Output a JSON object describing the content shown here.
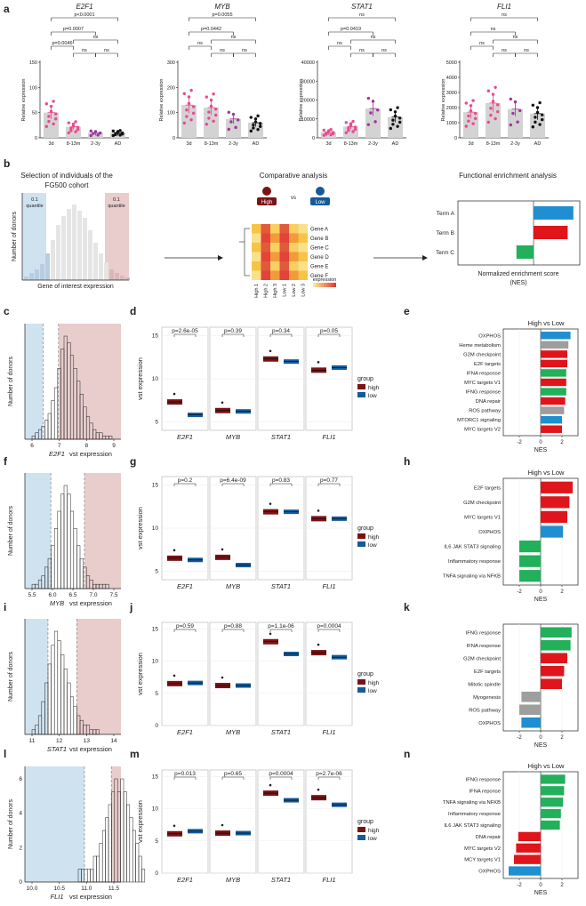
{
  "panel_letters": [
    "a",
    "b",
    "c",
    "d",
    "e",
    "f",
    "g",
    "h",
    "i",
    "j",
    "k",
    "l",
    "m",
    "n"
  ],
  "colors": {
    "pink_dots": "#e84a8f",
    "purple_dots": "#a0359a",
    "black_dots": "#111111",
    "bar_gray": "#d3d3d3",
    "low_shade": "#cfe2ef",
    "high_shade": "#e9cccc",
    "high_box": "#7b1315",
    "low_box": "#155a9a",
    "nes_green": "#22b05a",
    "nes_red": "#e0151b",
    "nes_blue": "#1f8fd1",
    "nes_gray": "#9e9e9e"
  },
  "panel_a": {
    "ylabel": "Relative expression",
    "categories": [
      "3d",
      "8-13m",
      "2-3y",
      "AD"
    ],
    "plots": [
      {
        "gene": "E2F1",
        "yticks": [
          "0",
          "50",
          "100",
          "150"
        ],
        "ymax": 150,
        "means": [
          50,
          22,
          10,
          10
        ],
        "brackets": [
          {
            "from": 0,
            "to": 3,
            "label": "p<0.0001"
          },
          {
            "from": 0,
            "to": 2,
            "label": "p=0.0007"
          },
          {
            "from": 0,
            "to": 1,
            "label": "p=0.0046"
          },
          {
            "from": 1,
            "to": 2,
            "label": "ns"
          },
          {
            "from": 2,
            "to": 3,
            "label": "ns"
          },
          {
            "from": 1,
            "to": 3,
            "label": "ns"
          }
        ]
      },
      {
        "gene": "MYB",
        "yticks": [
          "0",
          "100",
          "200",
          "300"
        ],
        "ymax": 300,
        "means": [
          130,
          120,
          75,
          60
        ],
        "brackets": [
          {
            "from": 0,
            "to": 3,
            "label": "p=0.0055"
          },
          {
            "from": 0,
            "to": 2,
            "label": "p=0.0442"
          },
          {
            "from": 0,
            "to": 1,
            "label": "ns"
          },
          {
            "from": 1,
            "to": 2,
            "label": "ns"
          },
          {
            "from": 2,
            "to": 3,
            "label": "ns"
          },
          {
            "from": 1,
            "to": 3,
            "label": "ns"
          }
        ]
      },
      {
        "gene": "STAT1",
        "yticks": [
          "0",
          "10000",
          "20000",
          "30000",
          "40000"
        ],
        "ymax": 40000,
        "means": [
          3000,
          6000,
          15500,
          11000
        ],
        "brackets": [
          {
            "from": 0,
            "to": 3,
            "label": "ns"
          },
          {
            "from": 0,
            "to": 2,
            "label": "p=0.0419"
          },
          {
            "from": 0,
            "to": 1,
            "label": "ns"
          },
          {
            "from": 1,
            "to": 2,
            "label": "ns"
          },
          {
            "from": 2,
            "to": 3,
            "label": "ns"
          },
          {
            "from": 1,
            "to": 3,
            "label": "ns"
          }
        ]
      },
      {
        "gene": "FLI1",
        "yticks": [
          "0",
          "1000",
          "2000",
          "3000",
          "4000",
          "5000"
        ],
        "ymax": 5000,
        "means": [
          1700,
          2300,
          1900,
          1600
        ],
        "brackets": [
          {
            "from": 0,
            "to": 3,
            "label": "ns"
          },
          {
            "from": 0,
            "to": 2,
            "label": "ns"
          },
          {
            "from": 0,
            "to": 1,
            "label": "ns"
          },
          {
            "from": 1,
            "to": 2,
            "label": "ns"
          },
          {
            "from": 2,
            "to": 3,
            "label": "ns"
          },
          {
            "from": 1,
            "to": 3,
            "label": "ns"
          }
        ]
      }
    ]
  },
  "panel_b": {
    "left_title": "Selection of individuals of the FG500 cohort",
    "left_title_line1": "Selection of individuals of the",
    "left_title_line2": "FG500 cohort",
    "quantile_low": "0.1 quantile",
    "quantile_low_l1": "0.1",
    "quantile_low_l2": "quantile",
    "quantile_high_l1": "0.1",
    "quantile_high_l2": "quantile",
    "ylabel": "Number of donors",
    "xlabel": "Gene of interest expression",
    "middle_title": "Comparative analysis",
    "high_label": "High",
    "vs_label": "vs",
    "low_label": "Low",
    "genes": [
      "Gene A",
      "Gene B",
      "Gene C",
      "Gene D",
      "Gene E",
      "Gene F"
    ],
    "columns": [
      "High 1",
      "High 2",
      "High 3",
      "Low 1",
      "Low 2",
      "Low 3"
    ],
    "legend_label": "expression",
    "right_title": "Functional enrichment analysis",
    "terms": [
      "Term A",
      "Term B",
      "Term C"
    ],
    "term_values": [
      2.8,
      2.4,
      -1.2
    ],
    "nes_axis_l1": "Normalized enrichment score",
    "nes_axis_l2": "(NES)"
  },
  "histograms": [
    {
      "id": "c",
      "gene": "E2F1",
      "xlabel_suffix": "vst expression",
      "xticks": [
        "6",
        "7",
        "8",
        "9"
      ],
      "ylabel": "Number of donors",
      "low_end_frac": 0.19,
      "high_start_frac": 0.35
    },
    {
      "id": "f",
      "gene": "MYB",
      "xlabel_suffix": "vst expression",
      "xticks": [
        "5.5",
        "6.0",
        "6.5",
        "7.0",
        "7.5"
      ],
      "ylabel": "Number of donors",
      "low_end_frac": 0.27,
      "high_start_frac": 0.62
    },
    {
      "id": "i",
      "gene": "STAT1",
      "xlabel_suffix": "vst expression",
      "xticks": [
        "11",
        "12",
        "13",
        "14"
      ],
      "ylabel": "Number of donors",
      "low_end_frac": 0.24,
      "high_start_frac": 0.54
    },
    {
      "id": "l",
      "gene": "FLI1",
      "xlabel_suffix": "vst expression",
      "xticks": [
        "10.0",
        "10.5",
        "11.0",
        "11.5"
      ],
      "yticks": [
        "0",
        "2",
        "4",
        "6"
      ],
      "ylabel": "Number of donors",
      "low_end_frac": 0.62,
      "high_start_frac": 0.9
    }
  ],
  "boxplots": [
    {
      "id": "d",
      "yticks": [
        "5",
        "10",
        "15"
      ],
      "ylim": [
        4,
        16
      ],
      "ylabel": "vst expression",
      "genes": [
        "E2F1",
        "MYB",
        "STAT1",
        "FLI1"
      ],
      "pvals": [
        "p=2.6e-05",
        "p=0.39",
        "p=0.34",
        "p=0.05"
      ],
      "high_med": [
        7.3,
        6.3,
        12.3,
        11.0
      ],
      "low_med": [
        5.8,
        6.2,
        12.0,
        11.3
      ],
      "legend_title": "group",
      "legend_high": "high",
      "legend_low": "low"
    },
    {
      "id": "g",
      "yticks": [
        "5",
        "10",
        "15"
      ],
      "ylim": [
        4,
        16
      ],
      "ylabel": "vst expression",
      "genes": [
        "E2F1",
        "MYB",
        "STAT1",
        "FLI1"
      ],
      "pvals": [
        "p=0.2",
        "p=6.4e-09",
        "p=0.83",
        "p=0.77"
      ],
      "high_med": [
        6.5,
        6.6,
        11.9,
        11.1
      ],
      "low_med": [
        6.3,
        5.7,
        11.9,
        11.1
      ],
      "legend_title": "group",
      "legend_high": "high",
      "legend_low": "low"
    },
    {
      "id": "j",
      "yticks": [
        "0",
        "5",
        "10",
        "15"
      ],
      "ylim": [
        0,
        16
      ],
      "ylabel": "vst expression",
      "genes": [
        "E2F1",
        "MYB",
        "STAT1",
        "FLI1"
      ],
      "pvals": [
        "p=0.59",
        "p=0.88",
        "p=1.1e-06",
        "p=0.0004"
      ],
      "high_med": [
        6.5,
        6.2,
        13.0,
        11.3
      ],
      "low_med": [
        6.6,
        6.2,
        11.1,
        10.6
      ],
      "legend_title": "group",
      "legend_high": "high",
      "legend_low": "low"
    },
    {
      "id": "m",
      "yticks": [
        "0",
        "5",
        "10",
        "15"
      ],
      "ylim": [
        0,
        16
      ],
      "ylabel": "vst expression",
      "genes": [
        "E2F1",
        "MYB",
        "STAT1",
        "FLI1"
      ],
      "pvals": [
        "p=0.013",
        "p=0.65",
        "p=0.0004",
        "p=2.7e-06"
      ],
      "high_med": [
        6.1,
        6.2,
        12.4,
        11.7
      ],
      "low_med": [
        6.5,
        6.2,
        11.3,
        10.6
      ],
      "legend_title": "group",
      "legend_high": "high",
      "legend_low": "low"
    }
  ],
  "nes_plots": [
    {
      "id": "e",
      "title": "High vs Low",
      "xlabel": "NES",
      "xticks": [
        "-2",
        "0",
        "2"
      ],
      "terms": [
        {
          "label": "OXPHOS",
          "value": 2.8,
          "color": "#1f8fd1"
        },
        {
          "label": "Heme metabolism",
          "value": 2.6,
          "color": "#9e9e9e"
        },
        {
          "label": "G2M checkpoint",
          "value": 2.5,
          "color": "#e0151b"
        },
        {
          "label": "E2F targets",
          "value": 2.5,
          "color": "#e0151b"
        },
        {
          "label": "IFNA response",
          "value": 2.4,
          "color": "#22b05a"
        },
        {
          "label": "MYC targets V1",
          "value": 2.4,
          "color": "#e0151b"
        },
        {
          "label": "IFNG response",
          "value": 2.4,
          "color": "#22b05a"
        },
        {
          "label": "DNA repair",
          "value": 2.3,
          "color": "#e0151b"
        },
        {
          "label": "ROS pathway",
          "value": 2.2,
          "color": "#9e9e9e"
        },
        {
          "label": "MTORC1 signaling",
          "value": 2.0,
          "color": "#1f8fd1"
        },
        {
          "label": "MYC targets V2",
          "value": 2.0,
          "color": "#e0151b"
        }
      ]
    },
    {
      "id": "h",
      "title": "High vs Low",
      "xlabel": "NES",
      "xticks": [
        "-2",
        "0",
        "2"
      ],
      "terms": [
        {
          "label": "E2F targets",
          "value": 3.0,
          "color": "#e0151b"
        },
        {
          "label": "G2M checkpoint",
          "value": 2.7,
          "color": "#e0151b"
        },
        {
          "label": "MYC targets V1",
          "value": 2.5,
          "color": "#e0151b"
        },
        {
          "label": "OXPHOS",
          "value": 2.1,
          "color": "#1f8fd1"
        },
        {
          "label": "IL6 JAK STAT3 signaling",
          "value": -2.0,
          "color": "#22b05a"
        },
        {
          "label": "Inflammatory response",
          "value": -2.0,
          "color": "#22b05a"
        },
        {
          "label": "TNFA signaling via NFKB",
          "value": -2.0,
          "color": "#22b05a"
        }
      ]
    },
    {
      "id": "k",
      "title": "",
      "xlabel": "NES",
      "xticks": [
        "-2",
        "0",
        "2"
      ],
      "terms": [
        {
          "label": "IFNG response",
          "value": 2.9,
          "color": "#22b05a"
        },
        {
          "label": "IFNA response",
          "value": 2.8,
          "color": "#22b05a"
        },
        {
          "label": "G2M checkpoint",
          "value": 2.5,
          "color": "#e0151b"
        },
        {
          "label": "E2F targets",
          "value": 2.2,
          "color": "#e0151b"
        },
        {
          "label": "Mitotic spindle",
          "value": 2.0,
          "color": "#e0151b"
        },
        {
          "label": "Myogenesis",
          "value": -1.8,
          "color": "#9e9e9e"
        },
        {
          "label": "ROS pathway",
          "value": -2.0,
          "color": "#9e9e9e"
        },
        {
          "label": "OXPHOS",
          "value": -1.8,
          "color": "#1f8fd1"
        }
      ]
    },
    {
      "id": "n",
      "title": "High vs Low",
      "xlabel": "NES",
      "xticks": [
        "-2",
        "0",
        "2"
      ],
      "terms": [
        {
          "label": "IFNG response",
          "value": 2.3,
          "color": "#22b05a"
        },
        {
          "label": "IFNA reponse",
          "value": 2.2,
          "color": "#22b05a"
        },
        {
          "label": "TNFA signaling via NFKB",
          "value": 2.1,
          "color": "#22b05a"
        },
        {
          "label": "Inflammatory response",
          "value": 1.9,
          "color": "#22b05a"
        },
        {
          "label": "IL6 JAK STAT3 signaling",
          "value": 1.8,
          "color": "#22b05a"
        },
        {
          "label": "DNA repair",
          "value": -2.1,
          "color": "#e0151b"
        },
        {
          "label": "MYC targets V2",
          "value": -2.3,
          "color": "#e0151b"
        },
        {
          "label": "MCY targets V1",
          "value": -2.5,
          "color": "#e0151b"
        },
        {
          "label": "OXPHOS",
          "value": -3.0,
          "color": "#1f8fd1"
        }
      ]
    }
  ],
  "chart_data": [
    {
      "type": "bar",
      "title": "E2F1",
      "categories": [
        "3d",
        "8-13m",
        "2-3y",
        "AD"
      ],
      "values": [
        50,
        22,
        10,
        10
      ],
      "ylabel": "Relative expression",
      "ylim": [
        0,
        150
      ]
    },
    {
      "type": "bar",
      "title": "MYB",
      "categories": [
        "3d",
        "8-13m",
        "2-3y",
        "AD"
      ],
      "values": [
        130,
        120,
        75,
        60
      ],
      "ylabel": "Relative expression",
      "ylim": [
        0,
        300
      ]
    },
    {
      "type": "bar",
      "title": "STAT1",
      "categories": [
        "3d",
        "8-13m",
        "2-3y",
        "AD"
      ],
      "values": [
        3000,
        6000,
        15500,
        11000
      ],
      "ylabel": "Relative expression",
      "ylim": [
        0,
        40000
      ]
    },
    {
      "type": "bar",
      "title": "FLI1",
      "categories": [
        "3d",
        "8-13m",
        "2-3y",
        "AD"
      ],
      "values": [
        1700,
        2300,
        1900,
        1600
      ],
      "ylabel": "Relative expression",
      "ylim": [
        0,
        5000
      ]
    }
  ]
}
